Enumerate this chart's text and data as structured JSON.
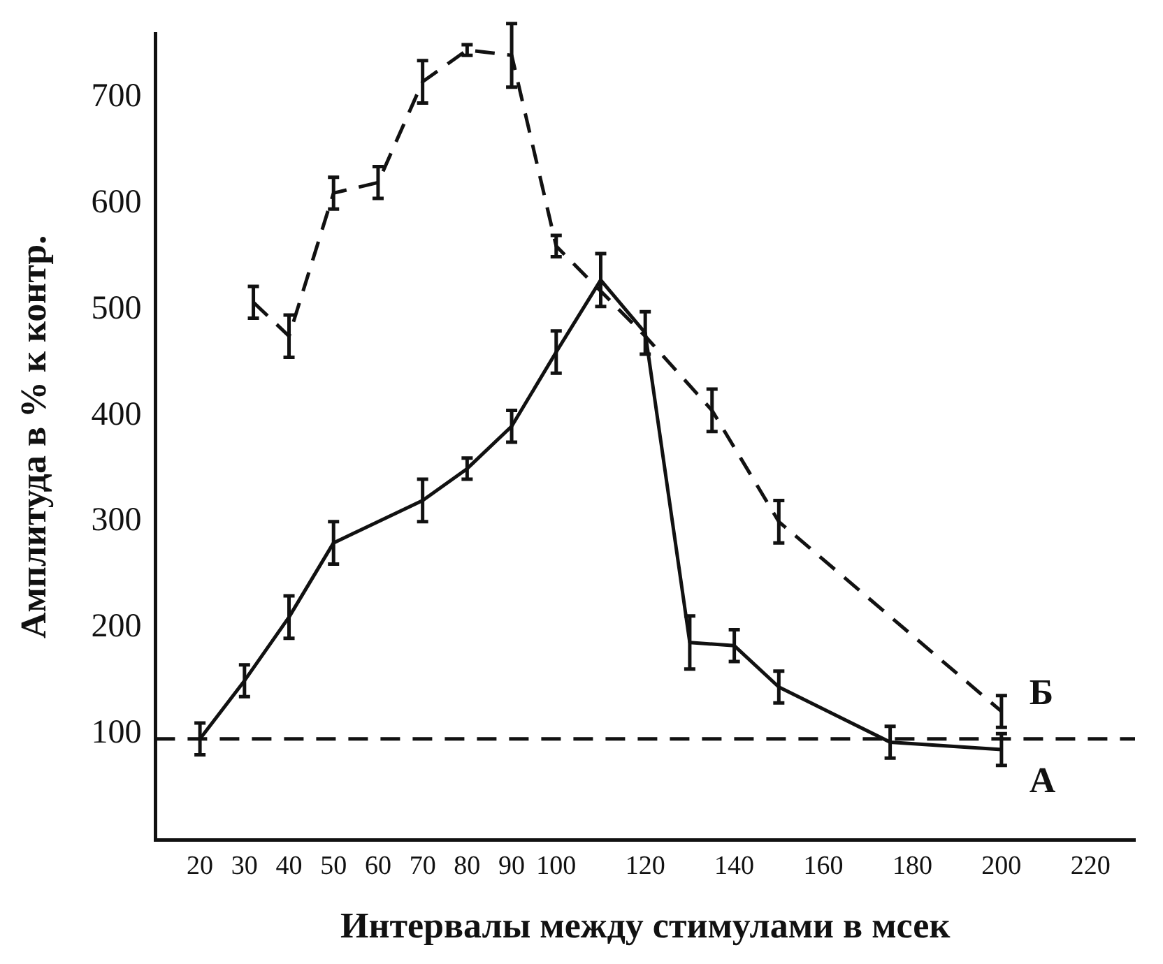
{
  "chart_data": {
    "type": "line",
    "xlabel": "Интервалы между стимулами в мсек",
    "ylabel": "Амплитуда в % к контр.",
    "xlim": [
      10,
      230
    ],
    "xticks": [
      20,
      30,
      40,
      50,
      60,
      70,
      80,
      90,
      100,
      120,
      140,
      160,
      180,
      200,
      220
    ],
    "ylim": [
      0,
      760
    ],
    "yticks": [
      100,
      200,
      300,
      400,
      500,
      600,
      700
    ],
    "grid": false,
    "legend": false,
    "marker": "none",
    "series": [
      {
        "name": "А",
        "color": "#111111",
        "line_style": "solid",
        "x": [
          20,
          30,
          40,
          50,
          70,
          80,
          90,
          100,
          110,
          120,
          130,
          140,
          150,
          175,
          200
        ],
        "values": [
          95,
          150,
          210,
          280,
          320,
          350,
          390,
          460,
          528,
          478,
          186,
          183,
          144,
          92,
          85
        ],
        "errors": [
          15,
          15,
          20,
          20,
          20,
          10,
          15,
          20,
          25,
          20,
          25,
          15,
          15,
          15,
          15
        ]
      },
      {
        "name": "Б",
        "color": "#111111",
        "line_style": "dashed",
        "x": [
          32,
          40,
          50,
          60,
          70,
          80,
          90,
          100,
          120,
          135,
          150,
          200
        ],
        "values": [
          507,
          475,
          610,
          620,
          715,
          745,
          740,
          560,
          475,
          405,
          300,
          121
        ],
        "errors": [
          15,
          20,
          15,
          15,
          20,
          5,
          30,
          10,
          null,
          20,
          20,
          15
        ]
      }
    ],
    "ref_lines": [
      {
        "axis": "y",
        "value": 95,
        "line_style": "dashed",
        "color": "#111111"
      }
    ]
  }
}
